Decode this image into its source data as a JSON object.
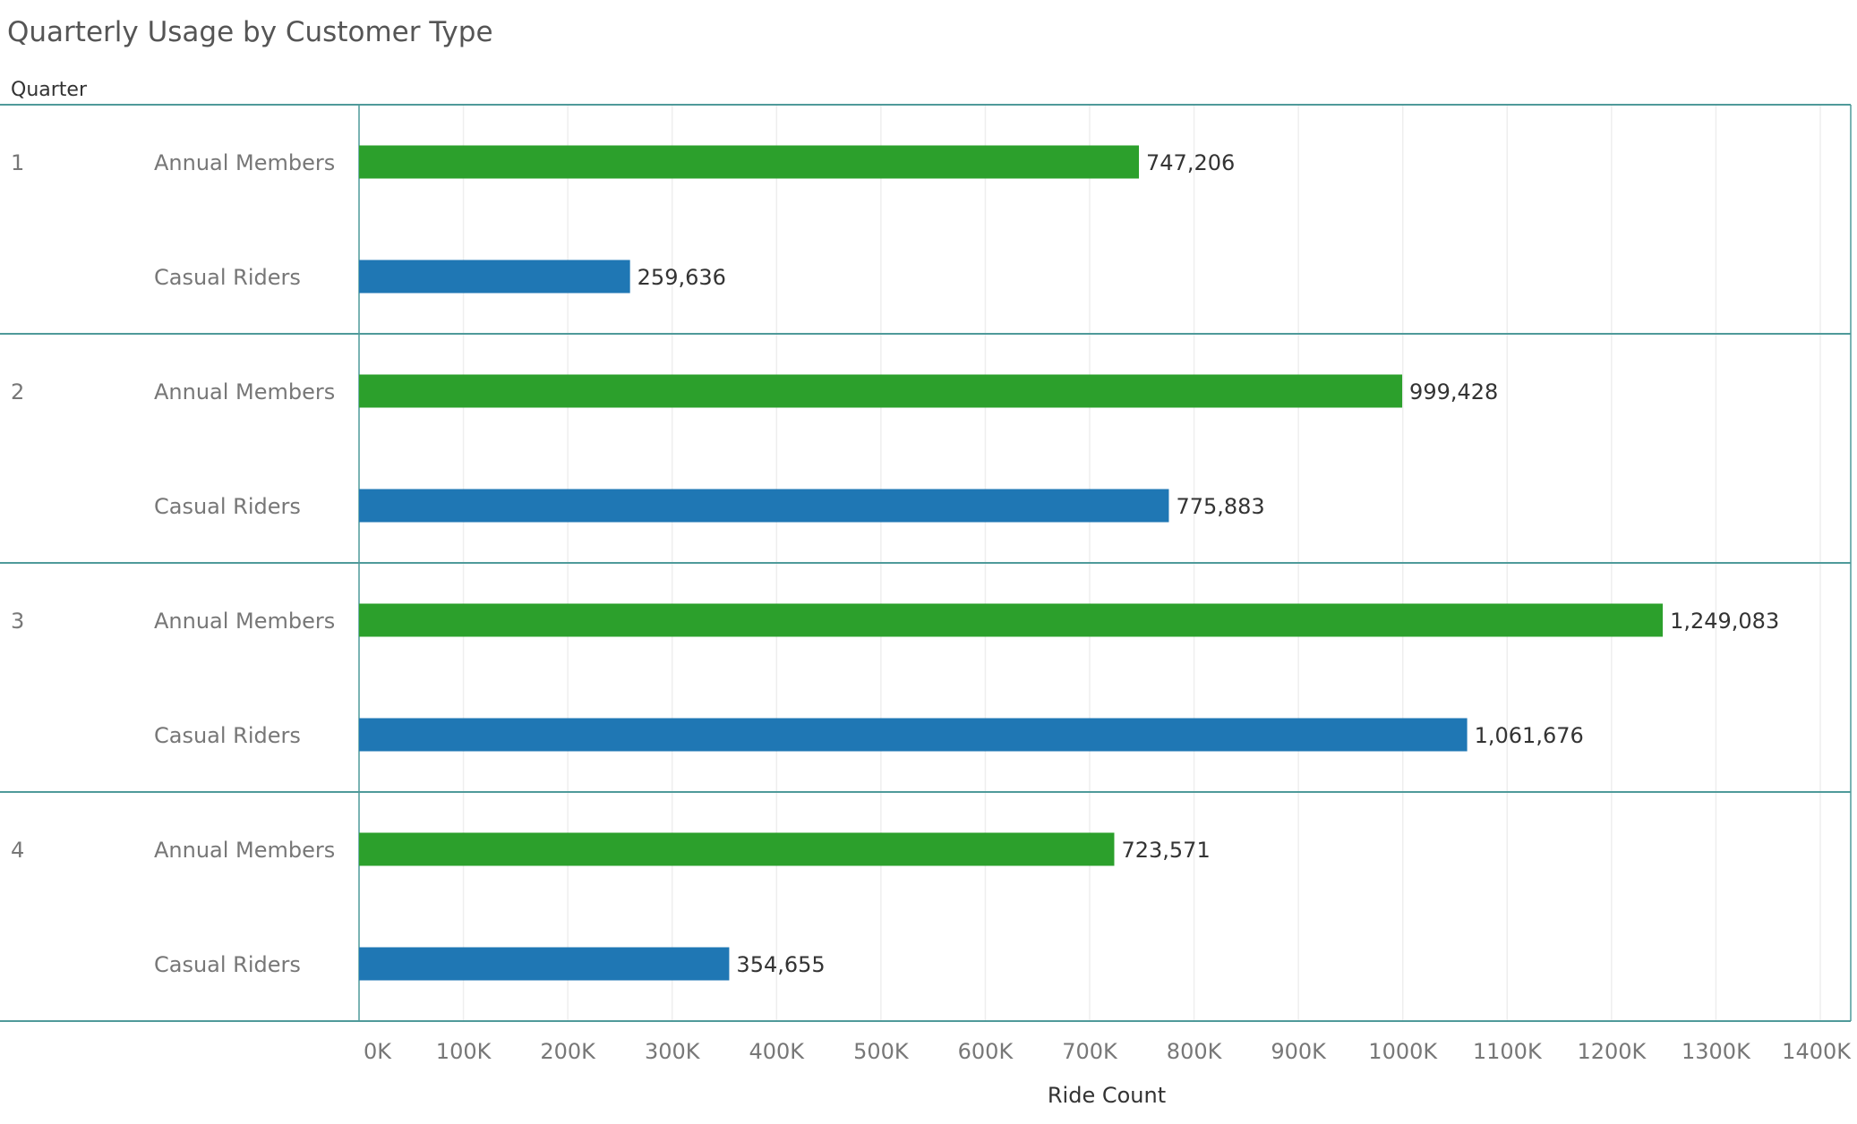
{
  "header": {
    "title": "Quarterly Usage by Customer Type",
    "row_header": "Quarter"
  },
  "colors": {
    "Annual Members": "#2ca02c",
    "Casual Riders": "#1f77b4",
    "frame": "#4f9a9a",
    "grid": "#eeeeee"
  },
  "chart_data": {
    "type": "bar",
    "orientation": "horizontal",
    "title": "Quarterly Usage by Customer Type",
    "xlabel": "Ride Count",
    "ylabel": "Quarter",
    "xlim": [
      0,
      1400000
    ],
    "grid": true,
    "x_ticks": [
      "0K",
      "100K",
      "200K",
      "300K",
      "400K",
      "500K",
      "600K",
      "700K",
      "800K",
      "900K",
      "1000K",
      "1100K",
      "1200K",
      "1300K",
      "1400K"
    ],
    "groups": [
      {
        "quarter": "1",
        "bars": [
          {
            "category": "Annual Members",
            "value": 747206,
            "label": "747,206"
          },
          {
            "category": "Casual Riders",
            "value": 259636,
            "label": "259,636"
          }
        ]
      },
      {
        "quarter": "2",
        "bars": [
          {
            "category": "Annual Members",
            "value": 999428,
            "label": "999,428"
          },
          {
            "category": "Casual Riders",
            "value": 775883,
            "label": "775,883"
          }
        ]
      },
      {
        "quarter": "3",
        "bars": [
          {
            "category": "Annual Members",
            "value": 1249083,
            "label": "1,249,083"
          },
          {
            "category": "Casual Riders",
            "value": 1061676,
            "label": "1,061,676"
          }
        ]
      },
      {
        "quarter": "4",
        "bars": [
          {
            "category": "Annual Members",
            "value": 723571,
            "label": "723,571"
          },
          {
            "category": "Casual Riders",
            "value": 354655,
            "label": "354,655"
          }
        ]
      }
    ]
  }
}
